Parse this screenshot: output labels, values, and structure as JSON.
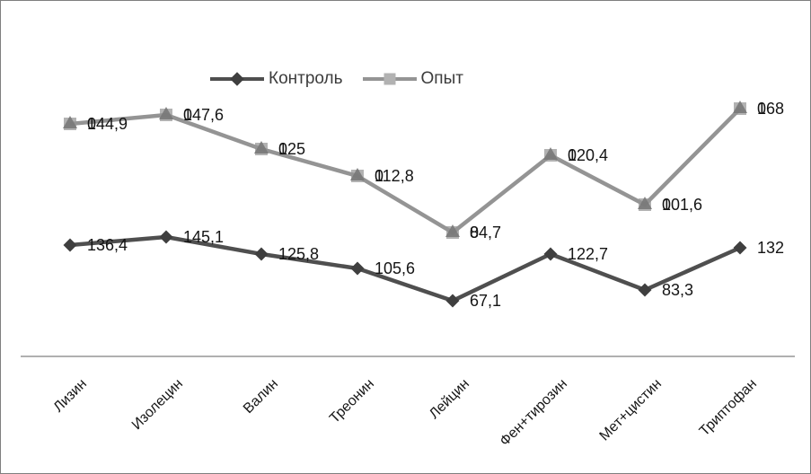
{
  "legend": {
    "items": [
      {
        "label": "Контроль"
      },
      {
        "label": "Опыт"
      }
    ]
  },
  "colors": {
    "control_line": "#4f4f4f",
    "control_marker": "#3f3f3f",
    "opyt_line": "#949494",
    "opyt_square": "#b2b2b2",
    "opyt_triangle": "#787878",
    "axis_line": "#b0b0b0",
    "label_text": "#141414",
    "border": "#7f7f7f"
  },
  "chart_data": {
    "type": "line",
    "title": "",
    "xlabel": "",
    "ylabel": "",
    "grid": false,
    "value_axis_visible": false,
    "legend_position": "top-center",
    "categories": [
      "Лизин",
      "Изолецин",
      "Валин",
      "Треонин",
      "Лейцин",
      "Фен+тирозин",
      "Мет+цистин",
      "Триптофан"
    ],
    "series": [
      {
        "name": "Контроль",
        "marker": "diamond",
        "values": [
          136.4,
          145.1,
          125.8,
          105.6,
          67.1,
          122.7,
          83.3,
          132
        ],
        "labels": [
          "136,4",
          "145,1",
          "125,8",
          "105,6",
          "67,1",
          "122,7",
          "83,3",
          "132"
        ]
      },
      {
        "name": "Опыт",
        "marker": "square-triangle",
        "values": [
          144.9,
          147.6,
          125,
          112.8,
          84.7,
          120.4,
          101.6,
          168
        ],
        "labels": [
          "144,9",
          "147,6",
          "125",
          "112,8",
          "84,7",
          "120,4",
          "101,6",
          "168"
        ],
        "label_overlay": "0"
      }
    ]
  }
}
